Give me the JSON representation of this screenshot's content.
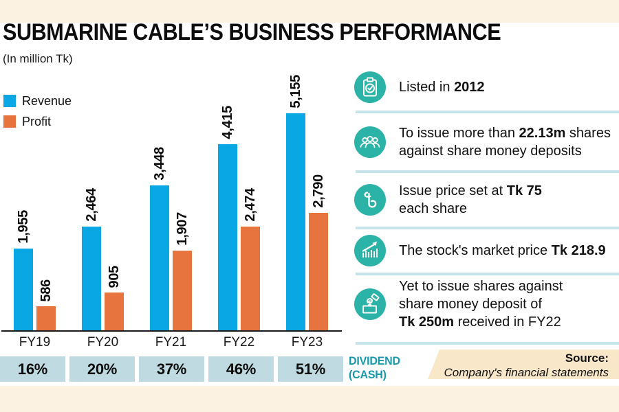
{
  "title": "SUBMARINE CABLE’S BUSINESS PERFORMANCE",
  "unit_note": "(In million Tk)",
  "colors": {
    "revenue": "#09a7e3",
    "profit": "#e7743e",
    "icon_teal": "#2bb3a7",
    "dividend_box": "#bfdae1",
    "dividend_text": "#1799ac",
    "cream": "#fcf2e2",
    "source_bg": "#f9e7ca",
    "separator": "#c6e3e9"
  },
  "chart_data": {
    "type": "bar",
    "title": "SUBMARINE CABLE’S BUSINESS PERFORMANCE",
    "unit": "In million Tk",
    "categories": [
      "FY19",
      "FY20",
      "FY21",
      "FY22",
      "FY23"
    ],
    "series": [
      {
        "name": "Revenue",
        "color": "#09a7e3",
        "values": [
          1955,
          2464,
          3448,
          4415,
          5155
        ],
        "labels": [
          "1,955",
          "2,464",
          "3,448",
          "4,415",
          "5,155"
        ]
      },
      {
        "name": "Profit",
        "color": "#e7743e",
        "values": [
          586,
          905,
          1907,
          2474,
          2790
        ],
        "labels": [
          "586",
          "905",
          "1,907",
          "2,474",
          "2,790"
        ]
      }
    ],
    "value_labels_rotated_90": true,
    "ylim": [
      0,
      5600
    ],
    "grid": false,
    "legend_position": "top-left"
  },
  "legend": [
    {
      "label": "Revenue"
    },
    {
      "label": "Profit"
    }
  ],
  "dividend": {
    "values": [
      "16%",
      "20%",
      "37%",
      "46%",
      "51%"
    ],
    "label_line1": "DIVIDEND",
    "label_line2": "(CASH)"
  },
  "facts": [
    {
      "icon": "clipboard-check-icon",
      "lines": [
        [
          {
            "t": "Listed in "
          },
          {
            "t": "2012",
            "b": true
          }
        ]
      ]
    },
    {
      "icon": "people-group-icon",
      "lines": [
        [
          {
            "t": "To issue more than "
          },
          {
            "t": "22.13m",
            "b": true
          },
          {
            "t": " shares"
          }
        ],
        [
          {
            "t": "against share money deposits"
          }
        ]
      ]
    },
    {
      "icon": "taka-currency-icon",
      "lines": [
        [
          {
            "t": "Issue price set at "
          },
          {
            "t": "Tk 75",
            "b": true
          }
        ],
        [
          {
            "t": "each share"
          }
        ]
      ]
    },
    {
      "icon": "stock-growth-icon",
      "lines": [
        [
          {
            "t": "The stock's market price "
          },
          {
            "t": "Tk 218.9",
            "b": true
          }
        ]
      ]
    },
    {
      "icon": "money-deposit-icon",
      "lines": [
        [
          {
            "t": "Yet to issue shares against"
          }
        ],
        [
          {
            "t": "share money deposit of"
          }
        ],
        [
          {
            "t": "Tk 250m",
            "b": true
          },
          {
            "t": " received in FY22"
          }
        ]
      ]
    }
  ],
  "source": {
    "label": "Source:",
    "text": "Company's financial statements"
  }
}
